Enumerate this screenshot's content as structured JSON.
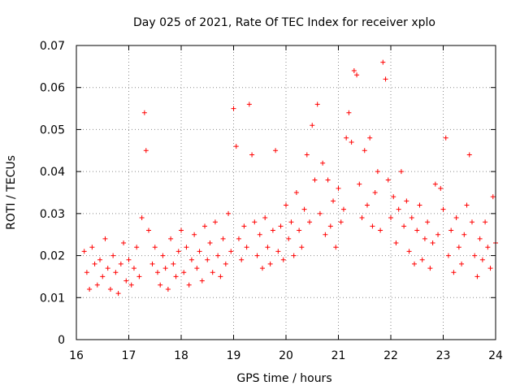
{
  "chart_data": {
    "type": "scatter",
    "title": "Day 025 of 2021, Rate Of TEC Index for receiver xplo",
    "xlabel": "GPS time / hours",
    "ylabel": "ROTI / TECUs",
    "xlim": [
      16,
      24
    ],
    "ylim": [
      0,
      0.07
    ],
    "xticks": [
      "16",
      "17",
      "18",
      "19",
      "20",
      "21",
      "22",
      "23",
      "24"
    ],
    "yticks": [
      "0",
      "0.01",
      "0.02",
      "0.03",
      "0.04",
      "0.05",
      "0.06",
      "0.07"
    ],
    "grid": true,
    "marker": "+",
    "color": "#ff0000",
    "series": [
      {
        "name": "ROTI",
        "points": [
          [
            16.15,
            0.021
          ],
          [
            16.2,
            0.016
          ],
          [
            16.25,
            0.012
          ],
          [
            16.3,
            0.022
          ],
          [
            16.35,
            0.018
          ],
          [
            16.4,
            0.013
          ],
          [
            16.45,
            0.019
          ],
          [
            16.5,
            0.015
          ],
          [
            16.55,
            0.024
          ],
          [
            16.6,
            0.017
          ],
          [
            16.65,
            0.012
          ],
          [
            16.7,
            0.02
          ],
          [
            16.75,
            0.016
          ],
          [
            16.8,
            0.011
          ],
          [
            16.85,
            0.018
          ],
          [
            16.9,
            0.023
          ],
          [
            16.95,
            0.014
          ],
          [
            17.0,
            0.019
          ],
          [
            17.05,
            0.013
          ],
          [
            17.1,
            0.017
          ],
          [
            17.15,
            0.022
          ],
          [
            17.2,
            0.015
          ],
          [
            17.25,
            0.029
          ],
          [
            17.3,
            0.054
          ],
          [
            17.33,
            0.045
          ],
          [
            17.38,
            0.026
          ],
          [
            17.45,
            0.018
          ],
          [
            17.5,
            0.022
          ],
          [
            17.55,
            0.016
          ],
          [
            17.6,
            0.013
          ],
          [
            17.65,
            0.02
          ],
          [
            17.7,
            0.017
          ],
          [
            17.75,
            0.012
          ],
          [
            17.8,
            0.024
          ],
          [
            17.85,
            0.018
          ],
          [
            17.9,
            0.015
          ],
          [
            17.95,
            0.021
          ],
          [
            18.0,
            0.026
          ],
          [
            18.05,
            0.016
          ],
          [
            18.1,
            0.022
          ],
          [
            18.15,
            0.013
          ],
          [
            18.2,
            0.019
          ],
          [
            18.25,
            0.025
          ],
          [
            18.3,
            0.017
          ],
          [
            18.35,
            0.021
          ],
          [
            18.4,
            0.014
          ],
          [
            18.45,
            0.027
          ],
          [
            18.5,
            0.019
          ],
          [
            18.55,
            0.023
          ],
          [
            18.6,
            0.016
          ],
          [
            18.65,
            0.028
          ],
          [
            18.7,
            0.02
          ],
          [
            18.75,
            0.015
          ],
          [
            18.8,
            0.024
          ],
          [
            18.85,
            0.018
          ],
          [
            18.9,
            0.03
          ],
          [
            18.95,
            0.021
          ],
          [
            19.0,
            0.055
          ],
          [
            19.05,
            0.046
          ],
          [
            19.1,
            0.024
          ],
          [
            19.15,
            0.019
          ],
          [
            19.2,
            0.027
          ],
          [
            19.25,
            0.022
          ],
          [
            19.3,
            0.056
          ],
          [
            19.35,
            0.044
          ],
          [
            19.4,
            0.028
          ],
          [
            19.45,
            0.02
          ],
          [
            19.5,
            0.025
          ],
          [
            19.55,
            0.017
          ],
          [
            19.6,
            0.029
          ],
          [
            19.65,
            0.022
          ],
          [
            19.7,
            0.018
          ],
          [
            19.75,
            0.026
          ],
          [
            19.8,
            0.045
          ],
          [
            19.85,
            0.021
          ],
          [
            19.9,
            0.027
          ],
          [
            19.95,
            0.019
          ],
          [
            20.0,
            0.032
          ],
          [
            20.05,
            0.024
          ],
          [
            20.1,
            0.028
          ],
          [
            20.15,
            0.02
          ],
          [
            20.2,
            0.035
          ],
          [
            20.25,
            0.026
          ],
          [
            20.3,
            0.022
          ],
          [
            20.35,
            0.031
          ],
          [
            20.4,
            0.044
          ],
          [
            20.45,
            0.028
          ],
          [
            20.5,
            0.051
          ],
          [
            20.55,
            0.038
          ],
          [
            20.6,
            0.056
          ],
          [
            20.65,
            0.03
          ],
          [
            20.7,
            0.042
          ],
          [
            20.75,
            0.025
          ],
          [
            20.8,
            0.038
          ],
          [
            20.85,
            0.027
          ],
          [
            20.9,
            0.033
          ],
          [
            20.95,
            0.022
          ],
          [
            21.0,
            0.036
          ],
          [
            21.05,
            0.028
          ],
          [
            21.1,
            0.031
          ],
          [
            21.15,
            0.048
          ],
          [
            21.2,
            0.054
          ],
          [
            21.25,
            0.047
          ],
          [
            21.3,
            0.064
          ],
          [
            21.35,
            0.063
          ],
          [
            21.4,
            0.037
          ],
          [
            21.45,
            0.029
          ],
          [
            21.5,
            0.045
          ],
          [
            21.55,
            0.032
          ],
          [
            21.6,
            0.048
          ],
          [
            21.65,
            0.027
          ],
          [
            21.7,
            0.035
          ],
          [
            21.75,
            0.04
          ],
          [
            21.8,
            0.026
          ],
          [
            21.85,
            0.066
          ],
          [
            21.9,
            0.062
          ],
          [
            21.95,
            0.038
          ],
          [
            22.0,
            0.029
          ],
          [
            22.05,
            0.034
          ],
          [
            22.1,
            0.023
          ],
          [
            22.15,
            0.031
          ],
          [
            22.2,
            0.04
          ],
          [
            22.25,
            0.027
          ],
          [
            22.3,
            0.033
          ],
          [
            22.35,
            0.021
          ],
          [
            22.4,
            0.029
          ],
          [
            22.45,
            0.018
          ],
          [
            22.5,
            0.026
          ],
          [
            22.55,
            0.032
          ],
          [
            22.6,
            0.019
          ],
          [
            22.65,
            0.024
          ],
          [
            22.7,
            0.028
          ],
          [
            22.75,
            0.017
          ],
          [
            22.8,
            0.023
          ],
          [
            22.85,
            0.037
          ],
          [
            22.9,
            0.025
          ],
          [
            22.95,
            0.036
          ],
          [
            23.0,
            0.031
          ],
          [
            23.05,
            0.048
          ],
          [
            23.1,
            0.02
          ],
          [
            23.15,
            0.026
          ],
          [
            23.2,
            0.016
          ],
          [
            23.25,
            0.029
          ],
          [
            23.3,
            0.022
          ],
          [
            23.35,
            0.018
          ],
          [
            23.4,
            0.025
          ],
          [
            23.45,
            0.032
          ],
          [
            23.5,
            0.044
          ],
          [
            23.55,
            0.028
          ],
          [
            23.6,
            0.02
          ],
          [
            23.65,
            0.015
          ],
          [
            23.7,
            0.024
          ],
          [
            23.75,
            0.019
          ],
          [
            23.8,
            0.028
          ],
          [
            23.85,
            0.022
          ],
          [
            23.9,
            0.017
          ],
          [
            23.95,
            0.034
          ],
          [
            24.0,
            0.023
          ]
        ]
      }
    ]
  }
}
